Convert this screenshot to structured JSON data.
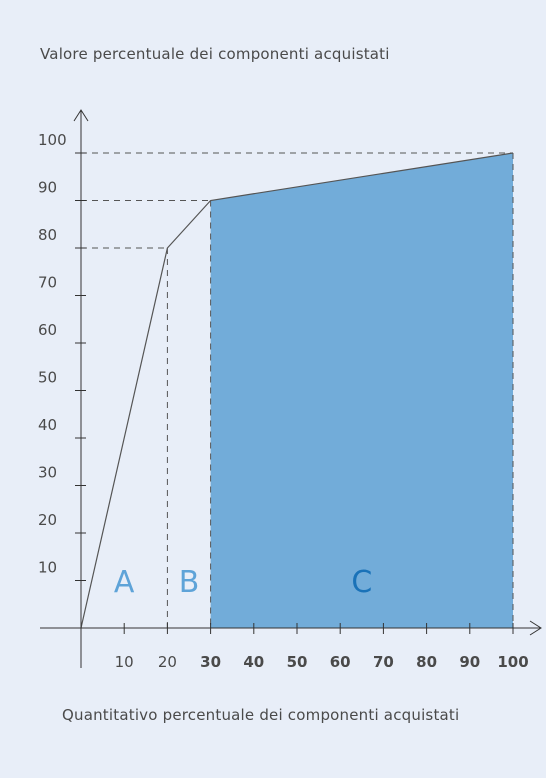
{
  "chart_data": {
    "type": "area",
    "title": "Valore percentuale dei componenti acquistati",
    "xlabel": "Quantitativo percentuale dei componenti acquistati",
    "ylabel": "",
    "xlim": [
      0,
      100
    ],
    "ylim": [
      0,
      100
    ],
    "x_ticks": [
      10,
      20,
      30,
      40,
      50,
      60,
      70,
      80,
      90,
      100
    ],
    "x_tick_labels": [
      "10",
      "20",
      "30",
      "40",
      "50",
      "60",
      "70",
      "80",
      "90",
      "100"
    ],
    "y_ticks": [
      10,
      20,
      30,
      40,
      50,
      60,
      70,
      80,
      90,
      100
    ],
    "y_tick_labels": [
      "10",
      "20",
      "30",
      "40",
      "50",
      "60",
      "70",
      "80",
      "90",
      "100"
    ],
    "series": [
      {
        "x": [
          0,
          20,
          30,
          100
        ],
        "y": [
          0,
          80,
          90,
          100
        ]
      }
    ],
    "reference_lines": [
      {
        "x": 20,
        "y": 80
      },
      {
        "x": 30,
        "y": 90
      },
      {
        "x": 100,
        "y": 100
      }
    ],
    "shaded_range": {
      "x": [
        30,
        100
      ],
      "color": "#72acd9"
    },
    "zones": [
      {
        "label": "A",
        "x_center": 10,
        "color": "#5ea3d8"
      },
      {
        "label": "B",
        "x_center": 25,
        "color": "#5ea3d8"
      },
      {
        "label": "C",
        "x_center": 65,
        "color": "#1a72b8"
      }
    ],
    "grid": false,
    "colors": {
      "line": "#555555",
      "axis": "#333333",
      "dashed": "#555555",
      "fill": "#72acd9"
    }
  }
}
